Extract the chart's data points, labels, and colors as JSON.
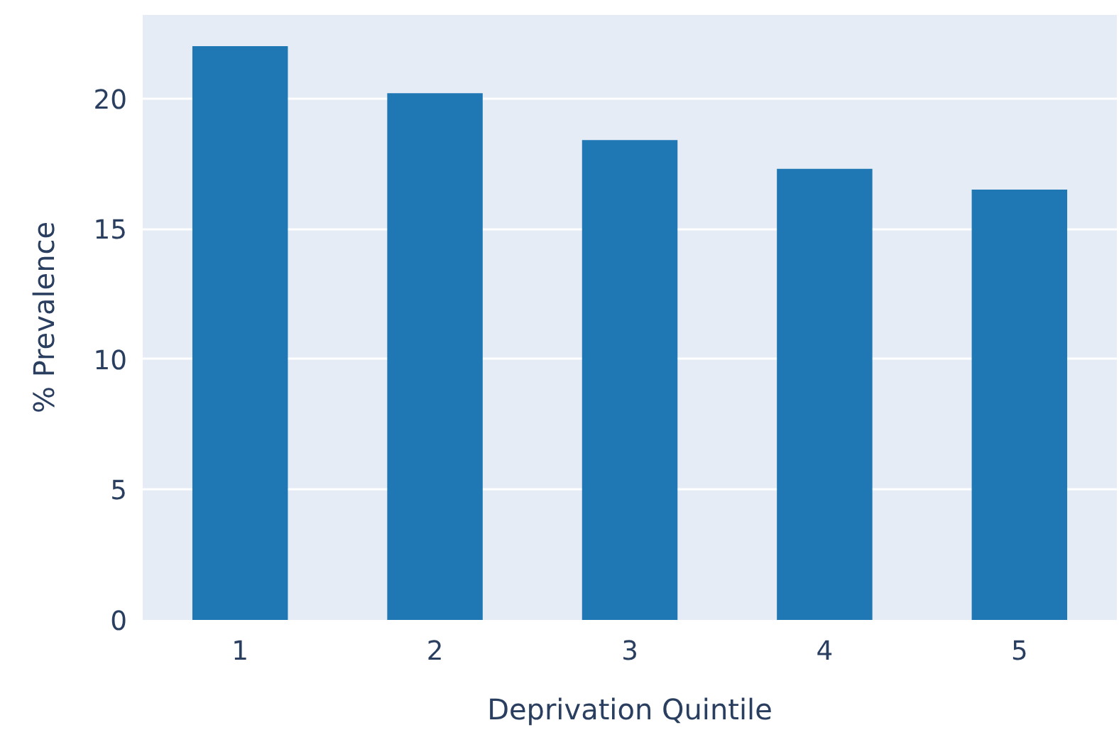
{
  "chart_data": {
    "type": "bar",
    "xlabel": "Deprivation Quintile",
    "ylabel": "% Prevalence",
    "categories": [
      "1",
      "2",
      "3",
      "4",
      "5"
    ],
    "values": [
      22.0,
      20.2,
      18.4,
      17.3,
      16.5
    ],
    "color": "#1f77b4",
    "ylim": [
      0,
      23.2
    ],
    "yticks": [
      0,
      5,
      10,
      15,
      20
    ],
    "grid": "y"
  }
}
